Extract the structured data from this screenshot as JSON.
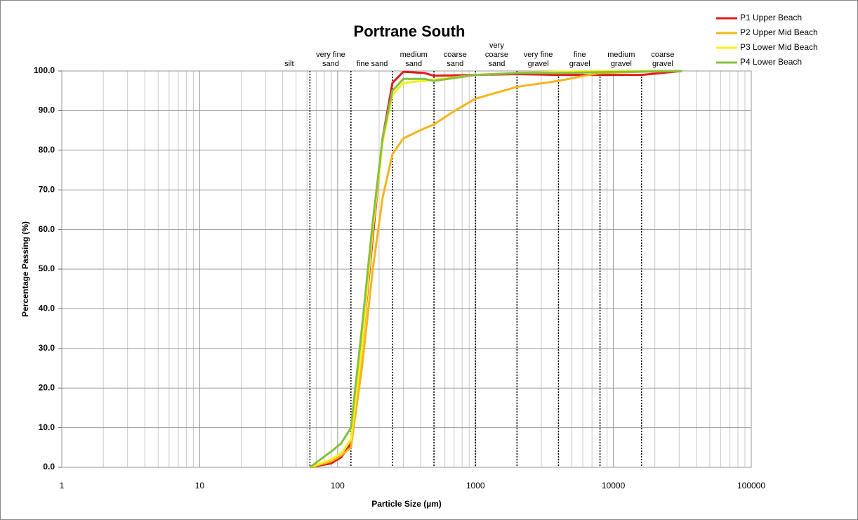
{
  "chart_data": {
    "type": "line",
    "title": "Portrane South",
    "x_label": "Particle Size (µm)",
    "y_label": "Percentage Passing (%)",
    "log_x": true,
    "grid": true,
    "legend": "top-right",
    "xlim": [
      1,
      100000
    ],
    "xticks": [
      1,
      10,
      100,
      1000,
      10000,
      100000
    ],
    "ylim": [
      0,
      100
    ],
    "yticks": [
      {
        "value": 0,
        "label": "0.0"
      },
      {
        "value": 10,
        "label": "10.0"
      },
      {
        "value": 20,
        "label": "20.0"
      },
      {
        "value": 30,
        "label": "30.0"
      },
      {
        "value": 40,
        "label": "40.0"
      },
      {
        "value": 50,
        "label": "50.0"
      },
      {
        "value": 60,
        "label": "60.0"
      },
      {
        "value": 70,
        "label": "70.0"
      },
      {
        "value": 80,
        "label": "80.0"
      },
      {
        "value": 90,
        "label": "90.0"
      },
      {
        "value": 100,
        "label": "100.0"
      }
    ],
    "boundaries": [
      63,
      125,
      250,
      500,
      1000,
      2000,
      4000,
      8000,
      16000
    ],
    "classes": [
      [
        "silt"
      ],
      [
        "very fine",
        "sand"
      ],
      [
        "fine sand"
      ],
      [
        "medium",
        "sand"
      ],
      [
        "coarse",
        "sand"
      ],
      [
        "very",
        "coarse",
        "sand"
      ],
      [
        "very fine",
        "gravel"
      ],
      [
        "fine",
        "gravel"
      ],
      [
        "medium",
        "gravel"
      ],
      [
        "coarse",
        "gravel"
      ]
    ],
    "series": [
      {
        "name": "P1 Upper Beach",
        "color": "#e31a1c",
        "x": [
          63,
          90,
          106,
          125,
          150,
          180,
          212,
          250,
          300,
          425,
          500,
          1000,
          2000,
          4000,
          8000,
          16000,
          31500
        ],
        "values": [
          0,
          1,
          2.5,
          6,
          30,
          58,
          83,
          97,
          99.8,
          99.5,
          98.8,
          99,
          99.2,
          99,
          99,
          99,
          100
        ]
      },
      {
        "name": "P2 Upper Mid Beach",
        "color": "#f5b51a",
        "x": [
          63,
          90,
          106,
          125,
          150,
          180,
          212,
          250,
          300,
          425,
          500,
          710,
          1000,
          2000,
          4000,
          5600,
          8000,
          16000,
          31500
        ],
        "values": [
          0,
          1.5,
          3,
          5,
          25,
          50,
          68,
          79,
          83,
          85.5,
          86.5,
          90,
          93,
          96,
          97.5,
          98.5,
          99.5,
          99.8,
          100
        ]
      },
      {
        "name": "P3 Lower Mid Beach",
        "color": "#f7f01e",
        "x": [
          63,
          90,
          106,
          125,
          150,
          180,
          212,
          250,
          300,
          425,
          500,
          1000,
          2000,
          4000,
          8000,
          31500
        ],
        "values": [
          0,
          2,
          3.5,
          7,
          30,
          60,
          82,
          94,
          97,
          97.5,
          97.8,
          99,
          99.5,
          99.8,
          100,
          100
        ]
      },
      {
        "name": "P4 Lower Beach",
        "color": "#86c040",
        "x": [
          63,
          90,
          106,
          125,
          150,
          180,
          212,
          250,
          300,
          425,
          500,
          1000,
          2000,
          4000,
          8000,
          31500
        ],
        "values": [
          0,
          4,
          6,
          10,
          35,
          62,
          83,
          95,
          98,
          98,
          97.5,
          99,
          99.5,
          99.5,
          99.7,
          100
        ]
      }
    ]
  }
}
